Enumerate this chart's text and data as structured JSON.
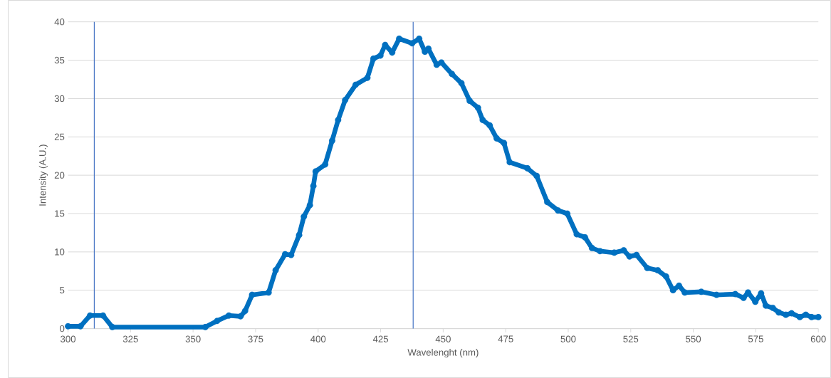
{
  "chart_data": {
    "type": "line",
    "xlabel": "Wavelenght (nm)",
    "ylabel": "Intensity (A.U.)",
    "x": [
      300,
      305,
      308.8,
      314,
      317.7,
      354.9,
      359.6,
      364.3,
      369,
      370.8,
      373.6,
      380.2,
      383,
      386.8,
      389.2,
      392.4,
      394.3,
      396.7,
      398.1,
      399,
      402.8,
      405.6,
      408,
      410.8,
      415,
      419.7,
      422.1,
      424.9,
      426.8,
      429.6,
      432.4,
      437.6,
      440.4,
      442.7,
      444.1,
      447.4,
      449.3,
      453.5,
      457.3,
      460.6,
      463.9,
      465.8,
      468.6,
      471.4,
      474.3,
      476.6,
      483.7,
      487.4,
      491.6,
      495.9,
      499.6,
      503.4,
      506.7,
      509.5,
      512.7,
      518.4,
      522.2,
      524.5,
      527.3,
      531.6,
      535.8,
      539.1,
      541.9,
      544.3,
      546.6,
      553.2,
      559.3,
      566.8,
      570.1,
      571.9,
      574.8,
      577.1,
      579,
      581.8,
      584.2,
      587,
      589.3,
      592.6,
      595,
      597.3,
      600
    ],
    "values": [
      0.3,
      0.3,
      1.7,
      1.7,
      0.2,
      0.2,
      1.0,
      1.7,
      1.6,
      2.3,
      4.4,
      4.7,
      7.6,
      9.7,
      9.6,
      12.2,
      14.6,
      16.1,
      18.6,
      20.5,
      21.4,
      24.5,
      27.2,
      29.8,
      31.8,
      32.7,
      35.2,
      35.6,
      37.0,
      36.0,
      37.8,
      37.2,
      37.8,
      36.1,
      36.5,
      34.4,
      34.7,
      33.2,
      32.0,
      29.7,
      28.8,
      27.2,
      26.5,
      24.8,
      24.2,
      21.7,
      20.9,
      19.9,
      16.5,
      15.4,
      15.0,
      12.3,
      11.9,
      10.5,
      10.1,
      9.9,
      10.2,
      9.4,
      9.6,
      7.9,
      7.6,
      6.8,
      5.0,
      5.6,
      4.7,
      4.8,
      4.4,
      4.5,
      4.0,
      4.7,
      3.5,
      4.6,
      3.0,
      2.7,
      2.1,
      1.8,
      2.0,
      1.5,
      1.8,
      1.5,
      1.5
    ],
    "color": "#0070c0",
    "marker": "circle",
    "grid": "y",
    "xlim": [
      300,
      600
    ],
    "ylim": [
      0,
      40
    ],
    "xticks": [
      300,
      325,
      350,
      375,
      400,
      425,
      450,
      475,
      500,
      525,
      550,
      575,
      600
    ],
    "yticks": [
      0,
      5,
      10,
      15,
      20,
      25,
      30,
      35,
      40
    ],
    "ref_lines": [
      {
        "axis": "x",
        "value": 310.5,
        "color": "#4472c4"
      },
      {
        "axis": "x",
        "value": 438,
        "color": "#4472c4"
      }
    ]
  }
}
